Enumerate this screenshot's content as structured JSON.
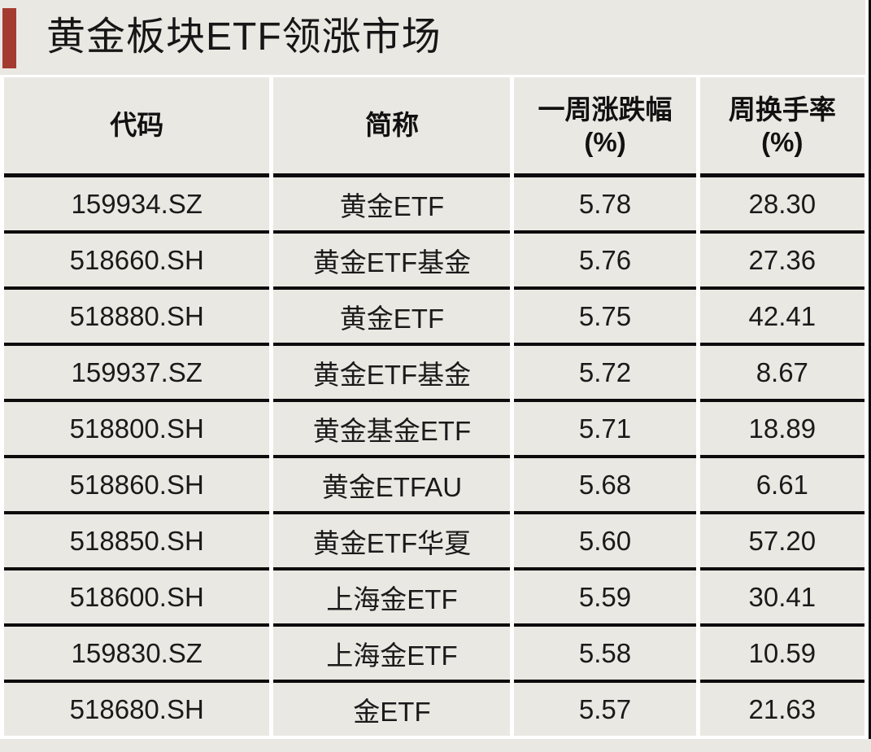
{
  "page": {
    "background_color": "#eae8e3",
    "accent_bar_color": "#a43b31",
    "border_color": "#0c0c0c",
    "gutter_color": "#ffffff",
    "text_color": "#1a1a1a"
  },
  "title": "黄金板块ETF领涨市场",
  "table": {
    "headers": [
      {
        "label": "代码",
        "unit": ""
      },
      {
        "label": "简称",
        "unit": ""
      },
      {
        "label": "一周涨跌幅",
        "unit": "(%)"
      },
      {
        "label": "周换手率",
        "unit": "(%)"
      }
    ],
    "rows": [
      [
        "159934.SZ",
        "黄金ETF",
        "5.78",
        "28.30"
      ],
      [
        "518660.SH",
        "黄金ETF基金",
        "5.76",
        "27.36"
      ],
      [
        "518880.SH",
        "黄金ETF",
        "5.75",
        "42.41"
      ],
      [
        "159937.SZ",
        "黄金ETF基金",
        "5.72",
        "8.67"
      ],
      [
        "518800.SH",
        "黄金基金ETF",
        "5.71",
        "18.89"
      ],
      [
        "518860.SH",
        "黄金ETFAU",
        "5.68",
        "6.61"
      ],
      [
        "518850.SH",
        "黄金ETF华夏",
        "5.60",
        "57.20"
      ],
      [
        "518600.SH",
        "上海金ETF",
        "5.59",
        "30.41"
      ],
      [
        "159830.SZ",
        "上海金ETF",
        "5.58",
        "10.59"
      ],
      [
        "518680.SH",
        "金ETF",
        "5.57",
        "21.63"
      ]
    ]
  },
  "chart_data": {
    "type": "table",
    "title": "黄金板块ETF领涨市场",
    "columns": [
      "代码",
      "简称",
      "一周涨跌幅(%)",
      "周换手率(%)"
    ],
    "rows": [
      [
        "159934.SZ",
        "黄金ETF",
        5.78,
        28.3
      ],
      [
        "518660.SH",
        "黄金ETF基金",
        5.76,
        27.36
      ],
      [
        "518880.SH",
        "黄金ETF",
        5.75,
        42.41
      ],
      [
        "159937.SZ",
        "黄金ETF基金",
        5.72,
        8.67
      ],
      [
        "518800.SH",
        "黄金基金ETF",
        5.71,
        18.89
      ],
      [
        "518860.SH",
        "黄金ETFAU",
        5.68,
        6.61
      ],
      [
        "518850.SH",
        "黄金ETF华夏",
        5.6,
        57.2
      ],
      [
        "518600.SH",
        "上海金ETF",
        5.59,
        30.41
      ],
      [
        "159830.SZ",
        "上海金ETF",
        5.58,
        10.59
      ],
      [
        "518680.SH",
        "金ETF",
        5.57,
        21.63
      ]
    ]
  }
}
